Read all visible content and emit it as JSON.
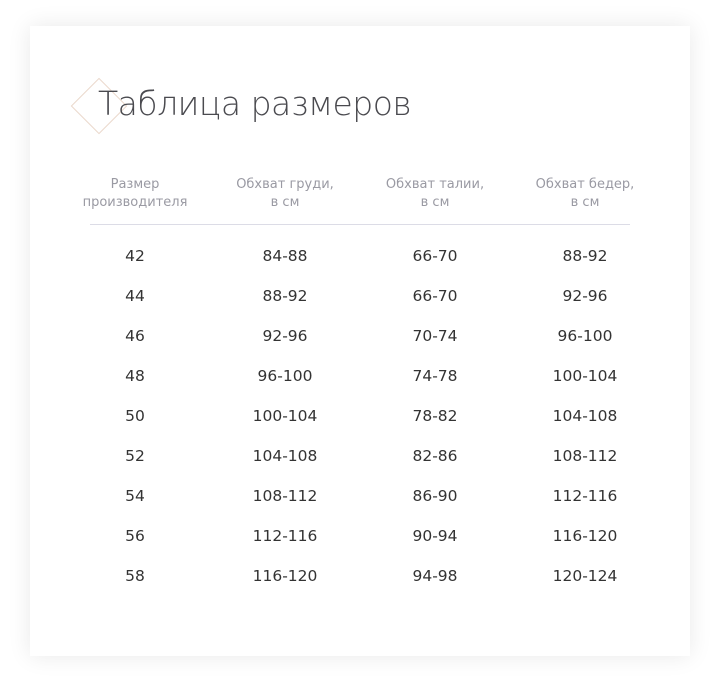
{
  "title": "Таблица размеров",
  "headers": [
    "Размер\nпроизводителя",
    "Обхват груди,\nв см",
    "Обхват талии,\nв см",
    "Обхват бедер,\nв см"
  ],
  "rows": [
    [
      "42",
      "84-88",
      "66-70",
      "88-92"
    ],
    [
      "44",
      "88-92",
      "66-70",
      "92-96"
    ],
    [
      "46",
      "92-96",
      "70-74",
      "96-100"
    ],
    [
      "48",
      "96-100",
      "74-78",
      "100-104"
    ],
    [
      "50",
      "100-104",
      "78-82",
      "104-108"
    ],
    [
      "52",
      "104-108",
      "82-86",
      "108-112"
    ],
    [
      "54",
      "108-112",
      "86-90",
      "112-116"
    ],
    [
      "56",
      "112-116",
      "90-94",
      "116-120"
    ],
    [
      "58",
      "116-120",
      "94-98",
      "120-124"
    ]
  ]
}
